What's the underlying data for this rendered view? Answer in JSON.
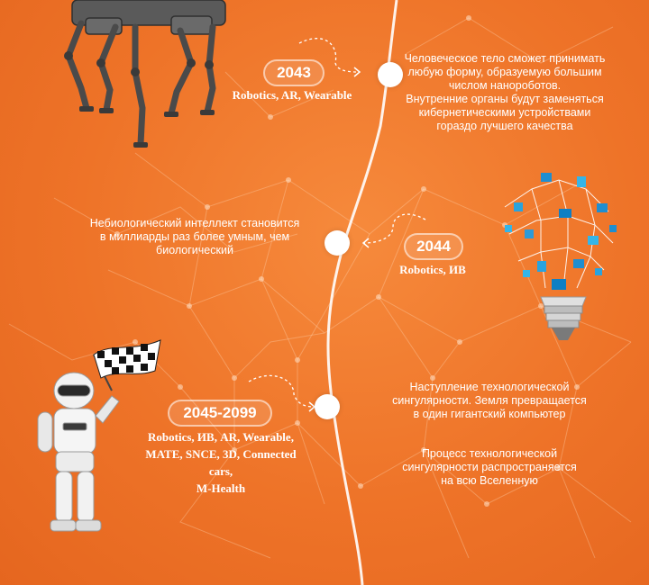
{
  "colors": {
    "accent": "#f07a2c",
    "text": "#ffffff"
  },
  "icons": {
    "robot_dog": "robot-dog-illustration",
    "light_bulb": "network-light-bulb-illustration",
    "humanoid_robot": "humanoid-robot-illustration",
    "checkered_flag": "checkered-flag-icon"
  },
  "timeline": {
    "e2043": {
      "year": "2043",
      "tags": "Robotics, AR, Wearable",
      "desc": [
        "Человеческое тело сможет принимать",
        "любую форму, образуемую большим",
        "числом нанороботов.",
        "Внутренние органы будут заменяться",
        "кибернетическими устройствами",
        "гораздо лучшего качества"
      ]
    },
    "e2044": {
      "year": "2044",
      "tags": "Robotics, ИВ",
      "desc": [
        "Небиологический интеллект становится",
        "в миллиарды раз более умным, чем",
        "биологический"
      ]
    },
    "e2045": {
      "year": "2045-2099",
      "tags": [
        "Robotics, ИВ, AR, Wearable,",
        "MATE, SNCE, 3D, Connected cars,",
        "M-Health"
      ],
      "desc1": [
        "Наступление технологической",
        "сингулярности. Земля превращается",
        "в один гигантский компьютер"
      ],
      "desc2": [
        "Процесс технологической",
        "сингулярности распространяется",
        "на всю Вселенную"
      ]
    }
  }
}
